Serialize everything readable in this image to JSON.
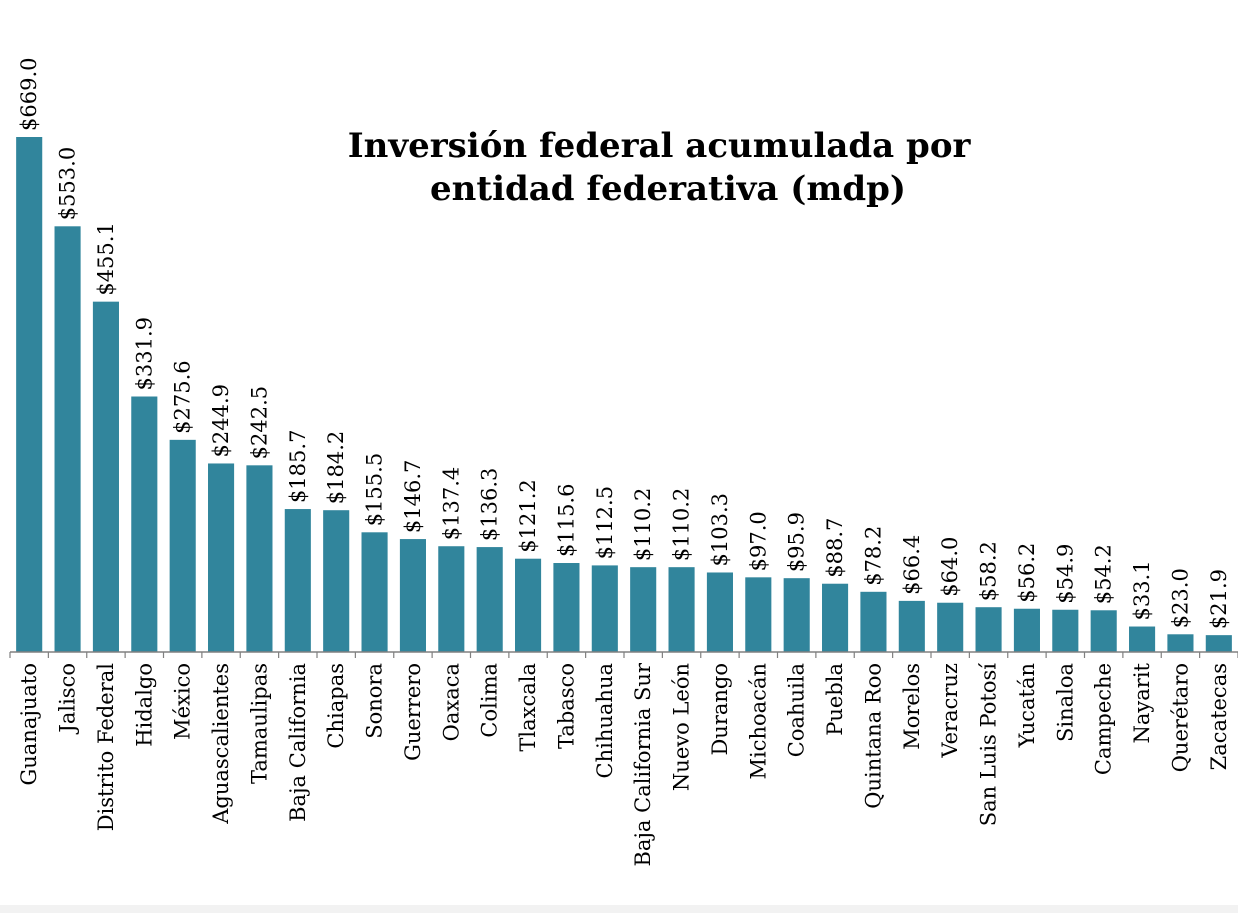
{
  "chart_data": {
    "type": "bar",
    "title": [
      "Inversión federal acumulada por",
      "entidad federativa (mdp)"
    ],
    "xlabel": "",
    "ylabel": "",
    "value_prefix": "$",
    "categories": [
      "Guanajuato",
      "Jalisco",
      "Distrito Federal",
      "Hidalgo",
      "México",
      "Aguascalientes",
      "Tamaulipas",
      "Baja California",
      "Chiapas",
      "Sonora",
      "Guerrero",
      "Oaxaca",
      "Colima",
      "Tlaxcala",
      "Tabasco",
      "Chihuahua",
      "Baja California Sur",
      "Nuevo León",
      "Durango",
      "Michoacán",
      "Coahuila",
      "Puebla",
      "Quintana Roo",
      "Morelos",
      "Veracruz",
      "San Luis Potosí",
      "Yucatán",
      "Sinaloa",
      "Campeche",
      "Nayarit",
      "Querétaro",
      "Zacatecas"
    ],
    "values": [
      669.0,
      553.0,
      455.1,
      331.9,
      275.6,
      244.9,
      242.5,
      185.7,
      184.2,
      155.5,
      146.7,
      137.4,
      136.3,
      121.2,
      115.6,
      112.5,
      110.2,
      110.2,
      103.3,
      97.0,
      95.9,
      88.7,
      78.2,
      66.4,
      64.0,
      58.2,
      56.2,
      54.9,
      54.2,
      33.1,
      23.0,
      21.9
    ],
    "value_labels": [
      "$669.0",
      "$553.0",
      "$455.1",
      "$331.9",
      "$275.6",
      "$244.9",
      "$242.5",
      "$185.7",
      "$184.2",
      "$155.5",
      "$146.7",
      "$137.4",
      "$136.3",
      "$121.2",
      "$115.6",
      "$112.5",
      "$110.2",
      "$110.2",
      "$103.3",
      "$97.0",
      "$95.9",
      "$88.7",
      "$78.2",
      "$66.4",
      "$64.0",
      "$58.2",
      "$56.2",
      "$54.9",
      "$54.2",
      "$33.1",
      "$23.0",
      "$21.9"
    ],
    "ylim": [
      0,
      669.0
    ],
    "grid": false,
    "legend": "none",
    "bar_color": "#31859c",
    "axis_color": "#808080"
  }
}
